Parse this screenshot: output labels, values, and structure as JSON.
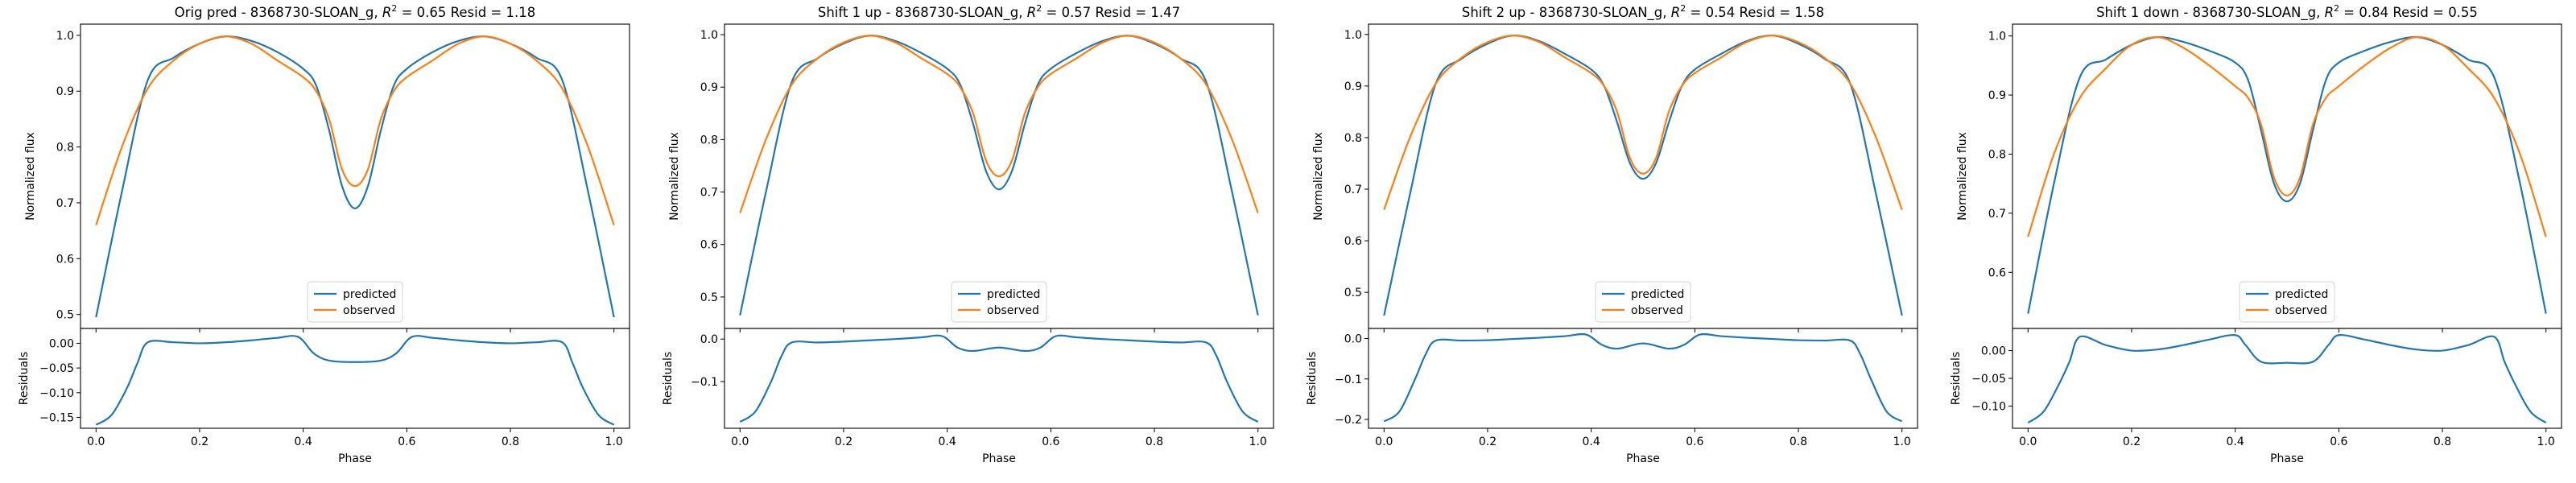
{
  "figure": {
    "background": "#ffffff"
  },
  "colors": {
    "predicted": "#1f77b4",
    "observed": "#ff7f0e",
    "axes": "#000000"
  },
  "chart_data": [
    {
      "type": "line",
      "title": "Orig pred - 8368730-SLOAN_g, R² = 0.65 Resid = 1.18",
      "xlabel": "Phase",
      "ylabel": "Normalized flux",
      "xlim": [
        -0.03,
        1.03
      ],
      "ylim": [
        0.475,
        1.02
      ],
      "xticks": [
        0.0,
        0.2,
        0.4,
        0.6,
        0.8,
        1.0
      ],
      "xtick_labels": [
        "0.0",
        "0.2",
        "0.4",
        "0.6",
        "0.8",
        "1.0"
      ],
      "yticks": [
        0.5,
        0.6,
        0.7,
        0.8,
        0.9,
        1.0
      ],
      "ytick_labels": [
        "0.5",
        "0.6",
        "0.7",
        "0.8",
        "0.9",
        "1.0"
      ],
      "legend": {
        "placement": "lower-center",
        "entries": [
          "predicted",
          "observed"
        ]
      },
      "series": [
        {
          "name": "predicted",
          "color": "#1f77b4",
          "x": [
            0.0,
            0.05,
            0.1,
            0.15,
            0.2,
            0.25,
            0.3,
            0.35,
            0.4,
            0.425,
            0.45,
            0.475,
            0.5,
            0.525,
            0.55,
            0.575,
            0.6,
            0.65,
            0.7,
            0.75,
            0.8,
            0.85,
            0.9,
            0.95,
            1.0
          ],
          "y": [
            0.495,
            0.72,
            0.92,
            0.96,
            0.985,
            0.998,
            0.99,
            0.97,
            0.94,
            0.91,
            0.83,
            0.73,
            0.69,
            0.73,
            0.83,
            0.91,
            0.94,
            0.97,
            0.99,
            0.998,
            0.985,
            0.96,
            0.92,
            0.72,
            0.495
          ]
        },
        {
          "name": "observed",
          "color": "#ff7f0e",
          "x": [
            0.0,
            0.05,
            0.1,
            0.15,
            0.2,
            0.25,
            0.3,
            0.35,
            0.4,
            0.425,
            0.45,
            0.475,
            0.5,
            0.525,
            0.55,
            0.575,
            0.6,
            0.65,
            0.7,
            0.75,
            0.8,
            0.85,
            0.9,
            0.95,
            1.0
          ],
          "y": [
            0.66,
            0.8,
            0.905,
            0.955,
            0.985,
            0.998,
            0.985,
            0.955,
            0.925,
            0.9,
            0.85,
            0.76,
            0.73,
            0.76,
            0.85,
            0.9,
            0.925,
            0.955,
            0.985,
            0.998,
            0.985,
            0.955,
            0.905,
            0.8,
            0.66
          ]
        }
      ],
      "residuals": {
        "ylabel": "Residuals",
        "ylim": [
          -0.172,
          0.03
        ],
        "yticks": [
          0.0,
          -0.05,
          -0.1,
          -0.15
        ],
        "ytick_labels": [
          "0.00",
          "−0.05",
          "−0.10",
          "−0.15"
        ],
        "x": [
          0.0,
          0.03,
          0.06,
          0.08,
          0.1,
          0.15,
          0.2,
          0.25,
          0.3,
          0.35,
          0.39,
          0.42,
          0.45,
          0.5,
          0.55,
          0.58,
          0.61,
          0.65,
          0.7,
          0.75,
          0.8,
          0.85,
          0.9,
          0.92,
          0.94,
          0.97,
          1.0
        ],
        "y": [
          -0.165,
          -0.145,
          -0.09,
          -0.04,
          0.002,
          0.002,
          0.0,
          0.002,
          0.006,
          0.011,
          0.013,
          -0.02,
          -0.035,
          -0.038,
          -0.035,
          -0.02,
          0.013,
          0.011,
          0.006,
          0.002,
          0.0,
          0.002,
          0.002,
          -0.04,
          -0.09,
          -0.145,
          -0.165
        ]
      }
    },
    {
      "type": "line",
      "title": "Shift 1 up - 8368730-SLOAN_g, R² = 0.57 Resid = 1.47",
      "xlabel": "Phase",
      "ylabel": "Normalized flux",
      "xlim": [
        -0.03,
        1.03
      ],
      "ylim": [
        0.44,
        1.02
      ],
      "xticks": [
        0.0,
        0.2,
        0.4,
        0.6,
        0.8,
        1.0
      ],
      "xtick_labels": [
        "0.0",
        "0.2",
        "0.4",
        "0.6",
        "0.8",
        "1.0"
      ],
      "yticks": [
        0.5,
        0.6,
        0.7,
        0.8,
        0.9,
        1.0
      ],
      "ytick_labels": [
        "0.5",
        "0.6",
        "0.7",
        "0.8",
        "0.9",
        "1.0"
      ],
      "legend": {
        "placement": "lower-center",
        "entries": [
          "predicted",
          "observed"
        ]
      },
      "series": [
        {
          "name": "predicted",
          "color": "#1f77b4",
          "x": [
            0.0,
            0.05,
            0.1,
            0.15,
            0.2,
            0.25,
            0.3,
            0.35,
            0.4,
            0.425,
            0.45,
            0.475,
            0.5,
            0.525,
            0.55,
            0.575,
            0.6,
            0.65,
            0.7,
            0.75,
            0.8,
            0.85,
            0.9,
            0.95,
            1.0
          ],
          "y": [
            0.465,
            0.7,
            0.91,
            0.955,
            0.983,
            0.998,
            0.988,
            0.965,
            0.935,
            0.905,
            0.83,
            0.74,
            0.705,
            0.74,
            0.83,
            0.905,
            0.935,
            0.965,
            0.988,
            0.998,
            0.983,
            0.955,
            0.91,
            0.7,
            0.465
          ]
        },
        {
          "name": "observed",
          "color": "#ff7f0e",
          "x": [
            0.0,
            0.05,
            0.1,
            0.15,
            0.2,
            0.25,
            0.3,
            0.35,
            0.4,
            0.425,
            0.45,
            0.475,
            0.5,
            0.525,
            0.55,
            0.575,
            0.6,
            0.65,
            0.7,
            0.75,
            0.8,
            0.85,
            0.9,
            0.95,
            1.0
          ],
          "y": [
            0.66,
            0.8,
            0.905,
            0.955,
            0.985,
            0.998,
            0.985,
            0.955,
            0.925,
            0.9,
            0.85,
            0.76,
            0.73,
            0.76,
            0.85,
            0.9,
            0.925,
            0.955,
            0.985,
            0.998,
            0.985,
            0.955,
            0.905,
            0.8,
            0.66
          ]
        }
      ],
      "residuals": {
        "ylabel": "Residuals",
        "ylim": [
          -0.21,
          0.025
        ],
        "yticks": [
          0.0,
          -0.1
        ],
        "ytick_labels": [
          "0.0",
          "−0.1"
        ],
        "x": [
          0.0,
          0.03,
          0.06,
          0.08,
          0.1,
          0.15,
          0.2,
          0.25,
          0.3,
          0.35,
          0.39,
          0.42,
          0.45,
          0.5,
          0.55,
          0.58,
          0.61,
          0.65,
          0.7,
          0.75,
          0.8,
          0.85,
          0.9,
          0.92,
          0.94,
          0.97,
          1.0
        ],
        "y": [
          -0.195,
          -0.17,
          -0.1,
          -0.04,
          -0.008,
          -0.008,
          -0.006,
          -0.003,
          0.0,
          0.004,
          0.007,
          -0.02,
          -0.028,
          -0.02,
          -0.028,
          -0.02,
          0.007,
          0.004,
          0.0,
          -0.003,
          -0.006,
          -0.008,
          -0.008,
          -0.04,
          -0.1,
          -0.17,
          -0.195
        ]
      }
    },
    {
      "type": "line",
      "title": "Shift 2 up - 8368730-SLOAN_g, R² = 0.54 Resid = 1.58",
      "xlabel": "Phase",
      "ylabel": "Normalized flux",
      "xlim": [
        -0.03,
        1.03
      ],
      "ylim": [
        0.43,
        1.02
      ],
      "xticks": [
        0.0,
        0.2,
        0.4,
        0.6,
        0.8,
        1.0
      ],
      "xtick_labels": [
        "0.0",
        "0.2",
        "0.4",
        "0.6",
        "0.8",
        "1.0"
      ],
      "yticks": [
        0.5,
        0.6,
        0.7,
        0.8,
        0.9,
        1.0
      ],
      "ytick_labels": [
        "0.5",
        "0.6",
        "0.7",
        "0.8",
        "0.9",
        "1.0"
      ],
      "legend": {
        "placement": "lower-center",
        "entries": [
          "predicted",
          "observed"
        ]
      },
      "series": [
        {
          "name": "predicted",
          "color": "#1f77b4",
          "x": [
            0.0,
            0.05,
            0.1,
            0.15,
            0.2,
            0.25,
            0.3,
            0.35,
            0.4,
            0.425,
            0.45,
            0.475,
            0.5,
            0.525,
            0.55,
            0.575,
            0.6,
            0.65,
            0.7,
            0.75,
            0.8,
            0.85,
            0.9,
            0.95,
            1.0
          ],
          "y": [
            0.455,
            0.69,
            0.905,
            0.953,
            0.982,
            0.998,
            0.987,
            0.962,
            0.932,
            0.9,
            0.83,
            0.75,
            0.72,
            0.75,
            0.83,
            0.9,
            0.932,
            0.962,
            0.987,
            0.998,
            0.982,
            0.953,
            0.905,
            0.69,
            0.455
          ]
        },
        {
          "name": "observed",
          "color": "#ff7f0e",
          "x": [
            0.0,
            0.05,
            0.1,
            0.15,
            0.2,
            0.25,
            0.3,
            0.35,
            0.4,
            0.425,
            0.45,
            0.475,
            0.5,
            0.525,
            0.55,
            0.575,
            0.6,
            0.65,
            0.7,
            0.75,
            0.8,
            0.85,
            0.9,
            0.95,
            1.0
          ],
          "y": [
            0.66,
            0.8,
            0.905,
            0.955,
            0.985,
            0.998,
            0.985,
            0.955,
            0.925,
            0.9,
            0.85,
            0.76,
            0.73,
            0.76,
            0.85,
            0.9,
            0.925,
            0.955,
            0.985,
            0.998,
            0.985,
            0.955,
            0.905,
            0.8,
            0.66
          ]
        }
      ],
      "residuals": {
        "ylabel": "Residuals",
        "ylim": [
          -0.222,
          0.025
        ],
        "yticks": [
          0.0,
          -0.1,
          -0.2
        ],
        "ytick_labels": [
          "0.0",
          "−0.1",
          "−0.2"
        ],
        "x": [
          0.0,
          0.03,
          0.06,
          0.08,
          0.1,
          0.15,
          0.2,
          0.25,
          0.3,
          0.35,
          0.39,
          0.42,
          0.45,
          0.5,
          0.55,
          0.58,
          0.61,
          0.65,
          0.7,
          0.75,
          0.8,
          0.85,
          0.9,
          0.92,
          0.94,
          0.97,
          1.0
        ],
        "y": [
          -0.205,
          -0.18,
          -0.1,
          -0.04,
          -0.005,
          -0.005,
          -0.004,
          -0.001,
          0.002,
          0.006,
          0.01,
          -0.015,
          -0.025,
          -0.012,
          -0.025,
          -0.015,
          0.01,
          0.006,
          0.002,
          -0.001,
          -0.004,
          -0.005,
          -0.005,
          -0.04,
          -0.1,
          -0.18,
          -0.205
        ]
      }
    },
    {
      "type": "line",
      "title": "Shift 1 down - 8368730-SLOAN_g, R² = 0.84 Resid = 0.55",
      "xlabel": "Phase",
      "ylabel": "Normalized flux",
      "xlim": [
        -0.03,
        1.03
      ],
      "ylim": [
        0.505,
        1.02
      ],
      "xticks": [
        0.0,
        0.2,
        0.4,
        0.6,
        0.8,
        1.0
      ],
      "xtick_labels": [
        "0.0",
        "0.2",
        "0.4",
        "0.6",
        "0.8",
        "1.0"
      ],
      "yticks": [
        0.6,
        0.7,
        0.8,
        0.9,
        1.0
      ],
      "ytick_labels": [
        "0.6",
        "0.7",
        "0.8",
        "0.9",
        "1.0"
      ],
      "legend": {
        "placement": "lower-center",
        "entries": [
          "predicted",
          "observed"
        ]
      },
      "series": [
        {
          "name": "predicted",
          "color": "#1f77b4",
          "x": [
            0.0,
            0.05,
            0.1,
            0.15,
            0.2,
            0.25,
            0.3,
            0.35,
            0.4,
            0.425,
            0.45,
            0.475,
            0.5,
            0.525,
            0.55,
            0.575,
            0.6,
            0.65,
            0.7,
            0.75,
            0.8,
            0.85,
            0.9,
            0.95,
            1.0
          ],
          "y": [
            0.53,
            0.75,
            0.93,
            0.96,
            0.985,
            0.998,
            0.99,
            0.975,
            0.955,
            0.925,
            0.84,
            0.75,
            0.72,
            0.75,
            0.84,
            0.925,
            0.955,
            0.975,
            0.99,
            0.998,
            0.985,
            0.96,
            0.93,
            0.75,
            0.53
          ]
        },
        {
          "name": "observed",
          "color": "#ff7f0e",
          "x": [
            0.0,
            0.05,
            0.1,
            0.15,
            0.2,
            0.25,
            0.3,
            0.35,
            0.4,
            0.425,
            0.45,
            0.475,
            0.5,
            0.525,
            0.55,
            0.575,
            0.6,
            0.65,
            0.7,
            0.75,
            0.8,
            0.85,
            0.9,
            0.95,
            1.0
          ],
          "y": [
            0.66,
            0.8,
            0.895,
            0.945,
            0.985,
            0.998,
            0.98,
            0.95,
            0.915,
            0.895,
            0.85,
            0.76,
            0.73,
            0.76,
            0.85,
            0.895,
            0.915,
            0.95,
            0.98,
            0.998,
            0.985,
            0.945,
            0.895,
            0.8,
            0.66
          ]
        }
      ],
      "residuals": {
        "ylabel": "Residuals",
        "ylim": [
          -0.14,
          0.04
        ],
        "yticks": [
          0.0,
          -0.05,
          -0.1
        ],
        "ytick_labels": [
          "0.00",
          "−0.05",
          "−0.10"
        ],
        "x": [
          0.0,
          0.03,
          0.06,
          0.08,
          0.1,
          0.15,
          0.2,
          0.25,
          0.3,
          0.35,
          0.4,
          0.42,
          0.45,
          0.5,
          0.55,
          0.58,
          0.6,
          0.65,
          0.7,
          0.75,
          0.8,
          0.85,
          0.9,
          0.92,
          0.94,
          0.97,
          1.0
        ],
        "y": [
          -0.13,
          -0.11,
          -0.06,
          -0.02,
          0.025,
          0.01,
          0.0,
          0.002,
          0.01,
          0.02,
          0.028,
          0.01,
          -0.02,
          -0.022,
          -0.02,
          0.01,
          0.028,
          0.02,
          0.01,
          0.002,
          0.0,
          0.01,
          0.025,
          -0.02,
          -0.06,
          -0.11,
          -0.13
        ]
      }
    }
  ]
}
